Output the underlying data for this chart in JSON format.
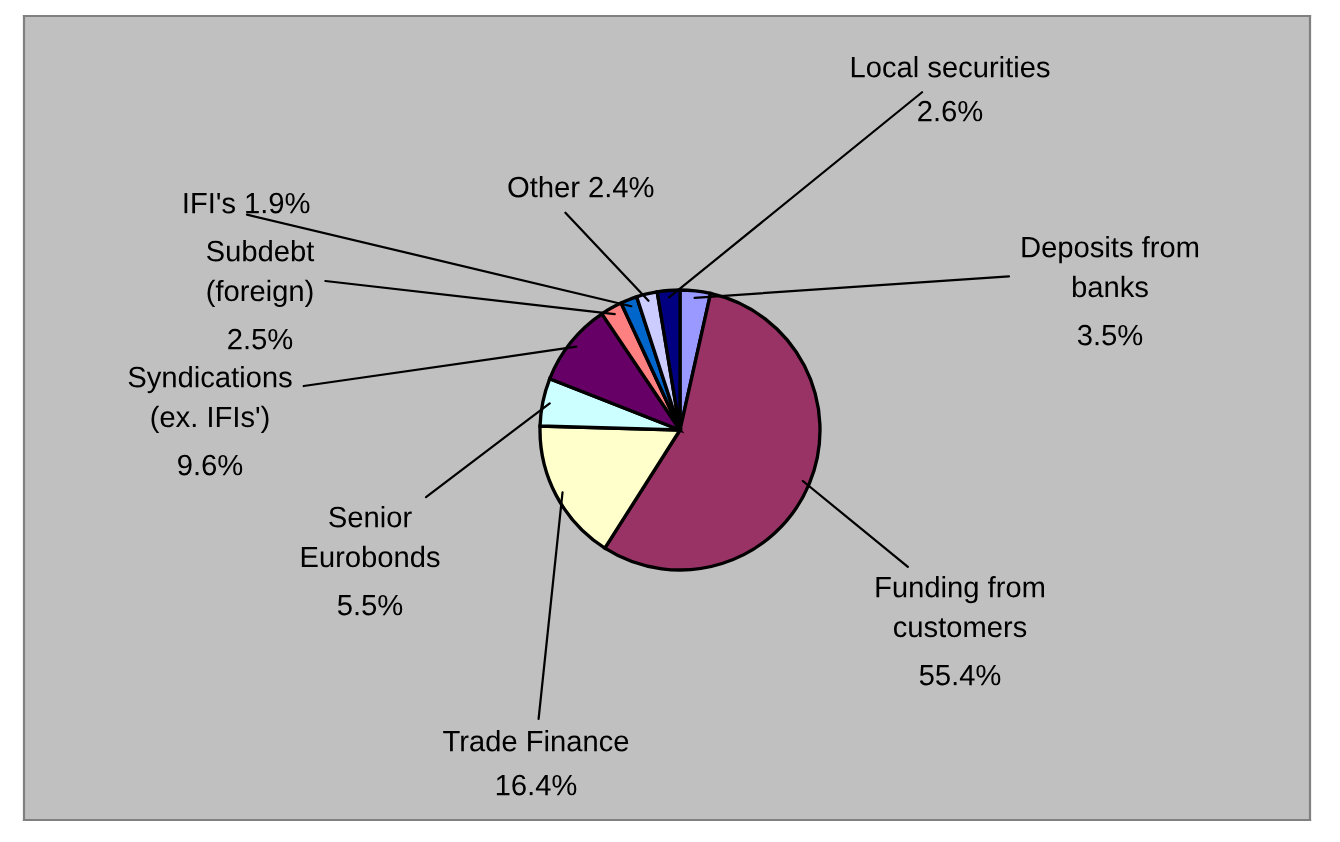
{
  "chart_data": {
    "type": "pie",
    "categories": [
      "Deposits from banks",
      "Funding from customers",
      "Trade Finance",
      "Senior Eurobonds",
      "Syndications (ex. IFIs')",
      "Subdebt (foreign)",
      "IFI's",
      "Other",
      "Local securities"
    ],
    "values": [
      3.5,
      55.4,
      16.4,
      5.5,
      9.6,
      2.5,
      1.9,
      2.4,
      2.6
    ],
    "colors": [
      "#9999ff",
      "#993366",
      "#ffffcc",
      "#ccffff",
      "#660066",
      "#ff8080",
      "#0066cc",
      "#ccccff",
      "#000080"
    ],
    "value_labels": [
      "3.5%",
      "55.4%",
      "16.4%",
      "5.5%",
      "9.6%",
      "2.5%",
      "1.9%",
      "2.4%",
      "2.6%"
    ],
    "legend": false
  }
}
